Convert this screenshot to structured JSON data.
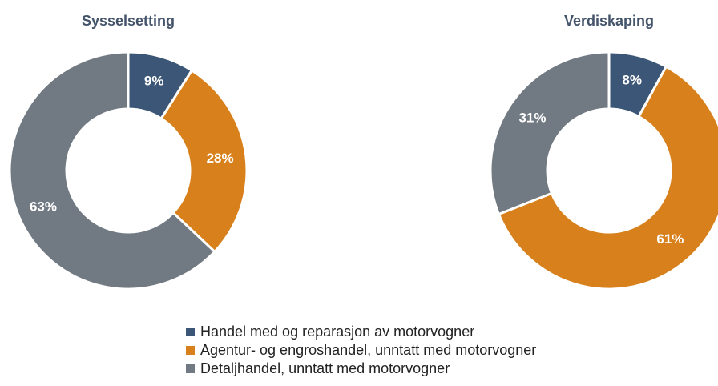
{
  "chart_data": [
    {
      "type": "pie",
      "title": "Sysselsetting",
      "values": [
        9,
        28,
        63
      ],
      "value_labels": [
        "9%",
        "28%",
        "63%"
      ]
    },
    {
      "type": "pie",
      "title": "Verdiskaping",
      "values": [
        8,
        61,
        31
      ],
      "value_labels": [
        "8%",
        "61%",
        "31%"
      ]
    }
  ],
  "legend": {
    "categories": [
      "Handel med og reparasjon av motorvogner",
      "Agentur- og engroshandel, unntatt med motorvogner",
      "Detaljhandel, unntatt med motorvogner"
    ],
    "colors": [
      "#3b5676",
      "#d8811c",
      "#717a82"
    ]
  }
}
